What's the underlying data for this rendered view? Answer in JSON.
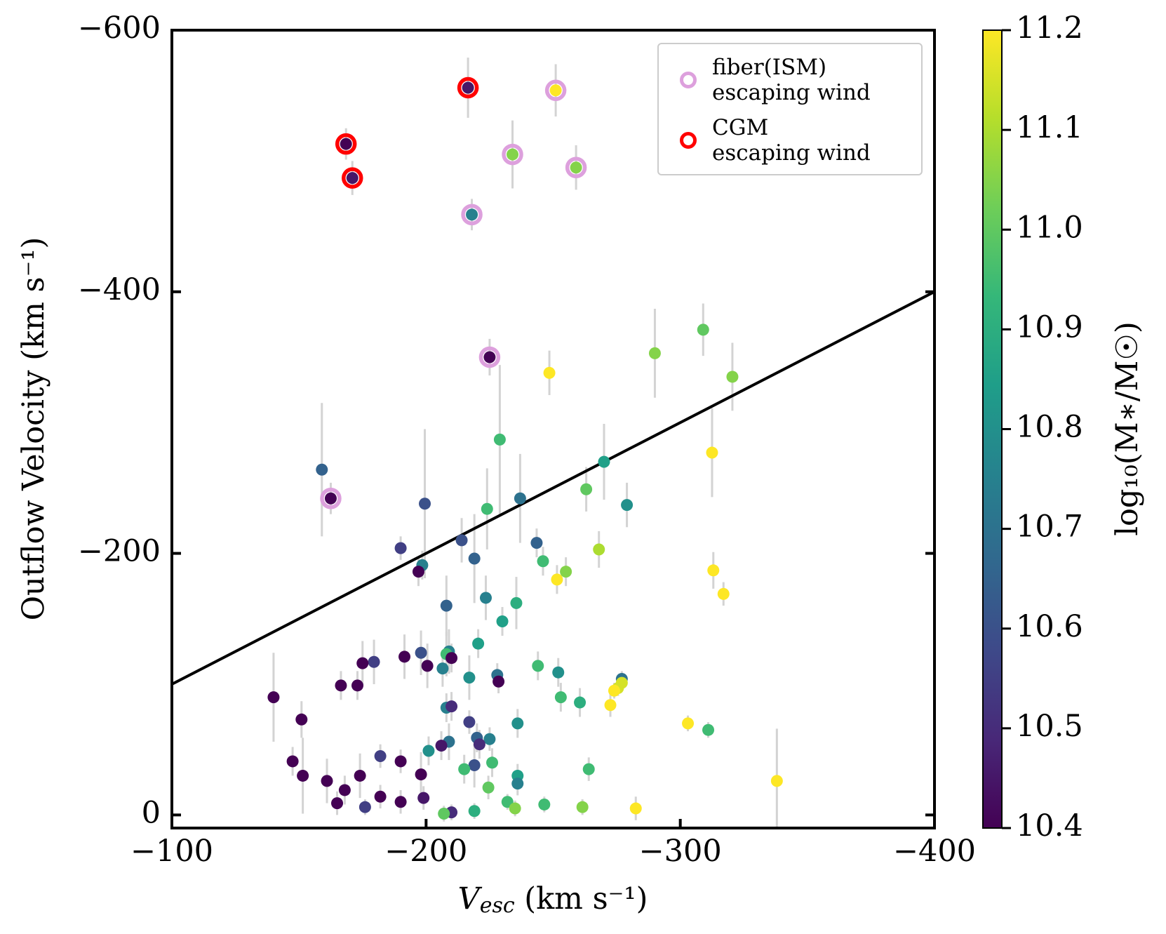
{
  "chart_data": {
    "type": "scatter",
    "x_label": {
      "main": "V",
      "sub": "esc",
      "unit": " (km s⁻¹)"
    },
    "y_label": "Outflow Velocity  (km s⁻¹)",
    "xlim": [
      -100,
      -400
    ],
    "ylim": [
      10,
      -600
    ],
    "xticks": [
      {
        "value": -100,
        "label": "−100"
      },
      {
        "value": -200,
        "label": "−200"
      },
      {
        "value": -300,
        "label": "−300"
      },
      {
        "value": -400,
        "label": "−400"
      }
    ],
    "yticks": [
      {
        "value": -600,
        "label": "−600"
      },
      {
        "value": -400,
        "label": "−400"
      },
      {
        "value": -200,
        "label": "−200"
      },
      0
    ],
    "series": [
      {
        "x": [
          -216.5,
          -168.5,
          -171,
          -251,
          -234,
          -259,
          -218,
          -225,
          -162.5,
          -248.5,
          -290,
          -309,
          -320.5,
          -229,
          -159,
          -199.5,
          -237,
          -270,
          -279,
          -263,
          -312.5,
          -224,
          -214,
          -190,
          -243.5,
          -268,
          -246,
          -219,
          -198.5,
          -197,
          -251.5,
          -255,
          -313,
          -317,
          -208,
          -223.5,
          -235.5,
          -230,
          -220.5,
          -209,
          -208,
          -210,
          -198,
          -191.5,
          -200.5,
          -179.5,
          -175,
          -244,
          -206.5,
          -252,
          -228,
          -228.5,
          -217,
          -277,
          -277,
          -275.5,
          -274,
          -173,
          -166.5,
          -140,
          -253,
          -260.5,
          -272.5,
          -208,
          -210,
          -151,
          -217,
          -236,
          -303,
          -311,
          -220,
          -225,
          -221,
          -209,
          -206,
          -201,
          -147.5,
          -182,
          -190,
          -219,
          -215,
          -226,
          -264,
          -236,
          -236,
          -198,
          -174,
          -151.5,
          -161,
          -168,
          -224.5,
          -338,
          -165,
          -182,
          -190,
          -199,
          -176,
          -232,
          -246.5,
          -235,
          -261.5,
          -282.5,
          -210,
          -219,
          -207
        ],
        "y": [
          -556,
          -513,
          -487,
          -554,
          -505,
          -495,
          -459,
          -350,
          -242,
          -338,
          -353,
          -371,
          -335,
          -287,
          -264,
          -238,
          -242,
          -270,
          -237,
          -249,
          -277,
          -234,
          -210,
          -204,
          -208,
          -203,
          -194,
          -196,
          -191,
          -186,
          -180,
          -186,
          -187,
          -169,
          -160,
          -166,
          -162,
          -148,
          -131,
          -125,
          -123,
          -120,
          -124,
          -121,
          -114,
          -117,
          -116,
          -114,
          -112,
          -109,
          -107,
          -102,
          -105,
          -104,
          -101,
          -97,
          -95,
          -99,
          -99,
          -90,
          -90,
          -86,
          -84,
          -82,
          -83,
          -73,
          -71,
          -70,
          -70,
          -65,
          -59,
          -58,
          -54,
          -56,
          -53,
          -49,
          -41,
          -45,
          -41,
          -38,
          -35,
          -40,
          -35,
          -30,
          -24,
          -31,
          -30,
          -30,
          -26,
          -19,
          -21,
          -26,
          -9,
          -14,
          -10,
          -13,
          -6,
          -10,
          -8,
          -5,
          -6,
          -5,
          -2,
          -3,
          -1
        ],
        "c": [
          10.45,
          10.4,
          10.45,
          11.2,
          11.05,
          11.05,
          10.75,
          10.4,
          10.4,
          11.2,
          11.05,
          11.0,
          11.05,
          10.95,
          10.65,
          10.6,
          10.7,
          10.85,
          10.8,
          11.0,
          11.2,
          10.95,
          10.6,
          10.55,
          10.65,
          11.1,
          10.95,
          10.65,
          10.75,
          10.4,
          11.2,
          11.05,
          11.2,
          11.2,
          10.65,
          10.75,
          10.9,
          10.85,
          10.85,
          10.75,
          10.95,
          10.4,
          10.6,
          10.4,
          10.4,
          10.55,
          10.4,
          10.95,
          10.75,
          10.8,
          10.7,
          10.4,
          10.8,
          10.7,
          11.15,
          11.15,
          11.2,
          10.4,
          10.4,
          10.4,
          10.95,
          10.9,
          11.2,
          10.75,
          10.5,
          10.4,
          10.55,
          10.8,
          11.2,
          10.95,
          10.65,
          10.75,
          10.5,
          10.7,
          10.45,
          10.8,
          10.4,
          10.55,
          10.4,
          10.6,
          10.95,
          10.95,
          10.95,
          10.85,
          10.75,
          10.4,
          10.4,
          10.4,
          10.4,
          10.4,
          11.0,
          11.2,
          10.4,
          10.4,
          10.4,
          10.45,
          10.55,
          10.95,
          10.95,
          11.05,
          11.05,
          11.2,
          10.5,
          10.9,
          11.0
        ],
        "yerr": [
          23,
          12,
          13,
          20,
          26,
          17,
          12,
          14,
          12,
          17,
          34,
          20,
          26,
          57,
          51,
          57,
          34,
          29,
          17,
          17,
          34,
          31,
          17,
          9,
          11,
          14,
          11,
          34,
          11,
          11,
          11,
          11,
          14,
          9,
          23,
          17,
          20,
          11,
          11,
          17,
          17,
          11,
          17,
          17,
          17,
          17,
          17,
          11,
          14,
          11,
          9,
          9,
          17,
          6,
          6,
          6,
          6,
          11,
          11,
          34,
          11,
          11,
          9,
          11,
          11,
          14,
          9,
          11,
          6,
          6,
          11,
          9,
          11,
          14,
          11,
          11,
          11,
          9,
          9,
          17,
          11,
          11,
          9,
          9,
          9,
          17,
          17,
          29,
          17,
          11,
          9,
          40,
          9,
          9,
          9,
          9,
          6,
          6,
          6,
          6,
          6,
          9,
          6,
          6,
          6
        ],
        "errcolor": "#d3d3d3"
      },
      {
        "type": "line",
        "x": [
          -100,
          -400
        ],
        "y": [
          -100,
          -400
        ],
        "color": "#000000"
      },
      {
        "name": "fiber(ISM)\nescaping wind",
        "color": "#dda0dd",
        "x": [
          -251,
          -234,
          -259,
          -218,
          -225,
          -162.5
        ],
        "y": [
          -554,
          -505,
          -495,
          -459,
          -350,
          -242
        ]
      },
      {
        "name": "CGM\nescaping wind",
        "color": "#ff0000",
        "x": [
          -216.5,
          -168.5,
          -171
        ],
        "y": [
          -556,
          -513,
          -487
        ]
      }
    ],
    "colorbar": {
      "label": "log₁₀(M∗/M☉)",
      "colormap": "viridis",
      "lim": [
        10.4,
        11.2
      ],
      "ticks": [
        10.4,
        10.5,
        10.6,
        10.7,
        10.8,
        10.9,
        {
          "value": 11,
          "label": "11.0"
        },
        11.1,
        11.2
      ]
    },
    "legend": "upper right"
  }
}
